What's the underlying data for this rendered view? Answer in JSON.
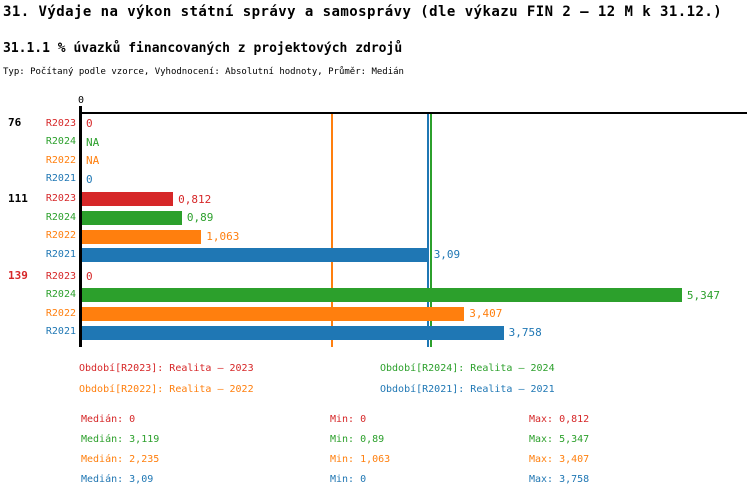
{
  "title": "31. Výdaje na výkon státní správy a samosprávy (dle výkazu FIN 2 – 12 M k 31.12.)",
  "subtitle": "31.1.1 % úvazků financovaných z projektových zdrojů",
  "meta": "Typ: Počítaný podle vzorce, Vyhodnocení: Absolutní hodnoty, Průměr: Medián",
  "colors": {
    "R2023": "#d62728",
    "R2024": "#2ca02c",
    "R2022": "#ff7f0e",
    "R2021": "#1f77b4",
    "axis": "#000000",
    "group_label_default": "#000000",
    "group_label_highlight": "#d62728"
  },
  "chart_data": {
    "type": "bar",
    "orientation": "horizontal",
    "x_axis": {
      "tick_labels": [
        "0"
      ],
      "tick_values": [
        0
      ],
      "xlim": [
        0,
        5.93
      ],
      "grid": false
    },
    "series_order": [
      "R2023",
      "R2024",
      "R2022",
      "R2021"
    ],
    "groups": [
      {
        "label": "76",
        "label_color": "#000000",
        "rows": [
          {
            "series": "R2023",
            "value": 0,
            "display": "0"
          },
          {
            "series": "R2024",
            "value": null,
            "display": "NA"
          },
          {
            "series": "R2022",
            "value": null,
            "display": "NA"
          },
          {
            "series": "R2021",
            "value": 0,
            "display": "0"
          }
        ]
      },
      {
        "label": "111",
        "label_color": "#000000",
        "rows": [
          {
            "series": "R2023",
            "value": 0.812,
            "display": "0,812"
          },
          {
            "series": "R2024",
            "value": 0.89,
            "display": "0,89"
          },
          {
            "series": "R2022",
            "value": 1.063,
            "display": "1,063"
          },
          {
            "series": "R2021",
            "value": 3.09,
            "display": "3,09"
          }
        ]
      },
      {
        "label": "139",
        "label_color": "#d62728",
        "rows": [
          {
            "series": "R2023",
            "value": 0,
            "display": "0"
          },
          {
            "series": "R2024",
            "value": 5.347,
            "display": "5,347"
          },
          {
            "series": "R2022",
            "value": 3.407,
            "display": "3,407"
          },
          {
            "series": "R2021",
            "value": 3.758,
            "display": "3,758"
          }
        ]
      }
    ],
    "median_lines": [
      {
        "series": "R2022",
        "value": 2.235
      },
      {
        "series": "R2021",
        "value": 3.09
      },
      {
        "series": "R2024",
        "value": 3.119
      }
    ],
    "legend": [
      {
        "series": "R2023",
        "label": "Období[R2023]: Realita – 2023"
      },
      {
        "series": "R2024",
        "label": "Období[R2024]: Realita – 2024"
      },
      {
        "series": "R2022",
        "label": "Období[R2022]: Realita – 2022"
      },
      {
        "series": "R2021",
        "label": "Období[R2021]: Realita – 2021"
      }
    ],
    "stats": [
      {
        "series": "R2023",
        "median": "Medián: 0",
        "min": "Min: 0",
        "max": "Max: 0,812"
      },
      {
        "series": "R2024",
        "median": "Medián: 3,119",
        "min": "Min: 0,89",
        "max": "Max: 5,347"
      },
      {
        "series": "R2022",
        "median": "Medián: 2,235",
        "min": "Min: 1,063",
        "max": "Max: 3,407"
      },
      {
        "series": "R2021",
        "median": "Medián: 3,09",
        "min": "Min: 0",
        "max": "Max: 3,758"
      }
    ]
  }
}
